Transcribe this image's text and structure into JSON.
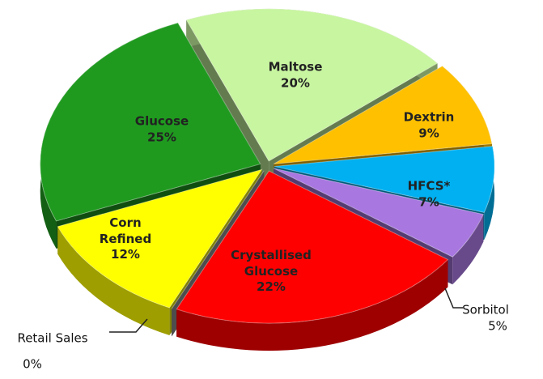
{
  "chart_data": {
    "type": "pie",
    "categories": [
      "Maltose",
      "Dextrin",
      "HFCS*",
      "Sorbitol",
      "Crystallised Glucose",
      "Retail Sales",
      "Corn Refined",
      "Glucose"
    ],
    "values": [
      20,
      9,
      7,
      5,
      22,
      0,
      12,
      25
    ],
    "value_labels": [
      "20%",
      "9%",
      "7%",
      "5%",
      "22%",
      "0%",
      "12%",
      "25%"
    ],
    "colors": [
      "#c8f5a0",
      "#ffc000",
      "#00b0f0",
      "#a878e0",
      "#ff0000",
      "#9a9a9a",
      "#ffff00",
      "#1f9a1f"
    ]
  }
}
